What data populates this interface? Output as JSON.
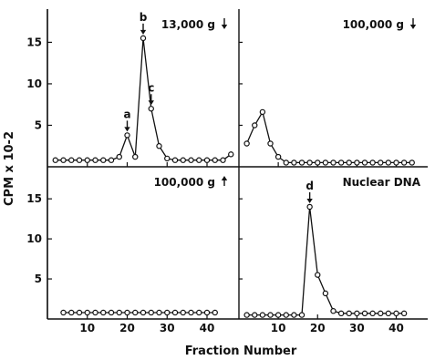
{
  "chart_data": {
    "type": "line",
    "xlabel": "Fraction Number",
    "ylabel": "CPM x 10-2",
    "x_ticks": [
      "10",
      "20",
      "30",
      "40"
    ],
    "y_ticks": [
      "5",
      "10",
      "15"
    ],
    "ylim": [
      0,
      19
    ],
    "grid": false,
    "panels": [
      {
        "id": "p13k",
        "title": "13,000 g",
        "arrow": "down",
        "xlim": [
          0,
          48
        ],
        "x": [
          2,
          4,
          6,
          8,
          10,
          12,
          14,
          16,
          18,
          20,
          22,
          24,
          26,
          28,
          30,
          32,
          34,
          36,
          38,
          40,
          42,
          44,
          46
        ],
        "y": [
          0.8,
          0.8,
          0.8,
          0.8,
          0.8,
          0.8,
          0.8,
          0.8,
          1.2,
          3.8,
          1.2,
          15.5,
          7.0,
          2.5,
          1.0,
          0.8,
          0.8,
          0.8,
          0.8,
          0.8,
          0.8,
          0.8,
          1.5
        ],
        "annotations": [
          {
            "label": "a",
            "x": 20,
            "y": 3.8
          },
          {
            "label": "b",
            "x": 24,
            "y": 15.5
          },
          {
            "label": "c",
            "x": 26,
            "y": 7.0
          }
        ]
      },
      {
        "id": "p100k_down",
        "title": "100,000 g",
        "arrow": "down",
        "xlim": [
          0,
          48
        ],
        "x": [
          2,
          4,
          6,
          8,
          10,
          12,
          14,
          16,
          18,
          20,
          22,
          24,
          26,
          28,
          30,
          32,
          34,
          36,
          38,
          40,
          42,
          44
        ],
        "y": [
          2.8,
          5.0,
          6.6,
          2.8,
          1.2,
          0.5,
          0.5,
          0.5,
          0.5,
          0.5,
          0.5,
          0.5,
          0.5,
          0.5,
          0.5,
          0.5,
          0.5,
          0.5,
          0.5,
          0.5,
          0.5,
          0.5
        ],
        "annotations": []
      },
      {
        "id": "p100k_up",
        "title": "100,000 g",
        "arrow": "up",
        "xlim": [
          0,
          48
        ],
        "x": [
          4,
          6,
          8,
          10,
          12,
          14,
          16,
          18,
          20,
          22,
          24,
          26,
          28,
          30,
          32,
          34,
          36,
          38,
          40,
          42
        ],
        "y": [
          0.8,
          0.8,
          0.8,
          0.8,
          0.8,
          0.8,
          0.8,
          0.8,
          0.8,
          0.8,
          0.8,
          0.8,
          0.8,
          0.8,
          0.8,
          0.8,
          0.8,
          0.8,
          0.8,
          0.8
        ],
        "annotations": []
      },
      {
        "id": "pnuc",
        "title": "Nuclear DNA",
        "arrow": "",
        "xlim": [
          0,
          48
        ],
        "x": [
          2,
          4,
          6,
          8,
          10,
          12,
          14,
          16,
          18,
          20,
          22,
          24,
          26,
          28,
          30,
          32,
          34,
          36,
          38,
          40,
          42
        ],
        "y": [
          0.5,
          0.5,
          0.5,
          0.5,
          0.5,
          0.5,
          0.5,
          0.5,
          14.0,
          5.5,
          3.2,
          1.0,
          0.7,
          0.7,
          0.7,
          0.7,
          0.7,
          0.7,
          0.7,
          0.7,
          0.7
        ],
        "annotations": [
          {
            "label": "d",
            "x": 18,
            "y": 14.0
          }
        ]
      }
    ]
  }
}
